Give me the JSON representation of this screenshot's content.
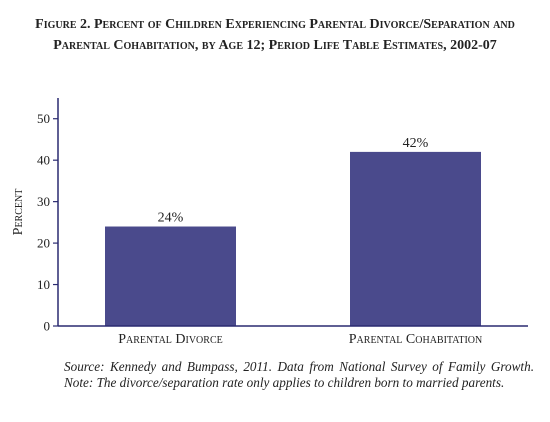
{
  "figure": {
    "title_line1": "Figure 2. Percent of Children Experiencing Parental Divorce/Separation and",
    "title_line2": "Parental Cohabitation, by Age 12; Period Life Table Estimates, 2002-07",
    "source_note": "Source: Kennedy and Bumpass, 2011. Data from National Survey of Family Growth. Note: The divorce/separation rate only applies to children born to married parents."
  },
  "colors": {
    "bar": "#4a4a8c",
    "axis": "#2a2a70"
  },
  "chart_data": {
    "type": "bar",
    "title": "Figure 2. Percent of Children Experiencing Parental Divorce/Separation and Parental Cohabitation, by Age 12; Period Life Table Estimates, 2002-07",
    "xlabel": "",
    "ylabel": "Percent",
    "ylim": [
      0,
      55
    ],
    "yticks": [
      0,
      10,
      20,
      30,
      40,
      50
    ],
    "categories": [
      "Parental Divorce",
      "Parental Cohabitation"
    ],
    "values": [
      24,
      42
    ],
    "data_labels": [
      "24%",
      "42%"
    ],
    "grid": false,
    "legend": "none"
  }
}
